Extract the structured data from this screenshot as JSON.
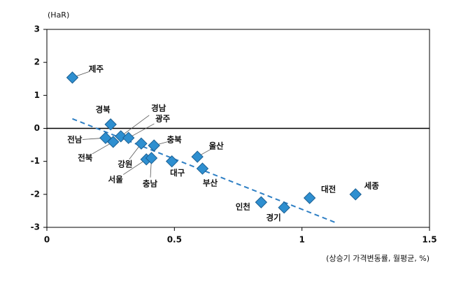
{
  "chart_data": {
    "type": "scatter",
    "y_label": "(HaR)",
    "x_label": "(상승기 가격변동률, 월평균, %)",
    "categories": [
      "제주",
      "경북",
      "전남",
      "전북",
      "경남",
      "광주",
      "강원",
      "충북",
      "서울",
      "충남",
      "대구",
      "울산",
      "부산",
      "인천",
      "경기",
      "대전",
      "세종"
    ],
    "x": [
      0.1,
      0.25,
      0.23,
      0.26,
      0.29,
      0.32,
      0.37,
      0.42,
      0.39,
      0.41,
      0.49,
      0.59,
      0.61,
      0.84,
      0.93,
      1.03,
      1.21
    ],
    "values": [
      1.54,
      0.12,
      -0.29,
      -0.41,
      -0.24,
      -0.29,
      -0.46,
      -0.52,
      -0.94,
      -0.9,
      -1.0,
      -0.86,
      -1.22,
      -2.24,
      -2.4,
      -2.11,
      -2.0
    ],
    "color": "#2e8fd0",
    "trendline": {
      "x": [
        0.1,
        1.13
      ],
      "values": [
        0.29,
        -2.85
      ],
      "color": "#2e7fc4"
    },
    "xlim": [
      0,
      1.5
    ],
    "xticks": [
      0,
      0.5,
      1,
      1.5
    ],
    "ylim": [
      -3,
      3
    ],
    "yticks": [
      -3,
      -2,
      -1,
      0,
      1,
      2,
      3
    ],
    "grid": false
  }
}
